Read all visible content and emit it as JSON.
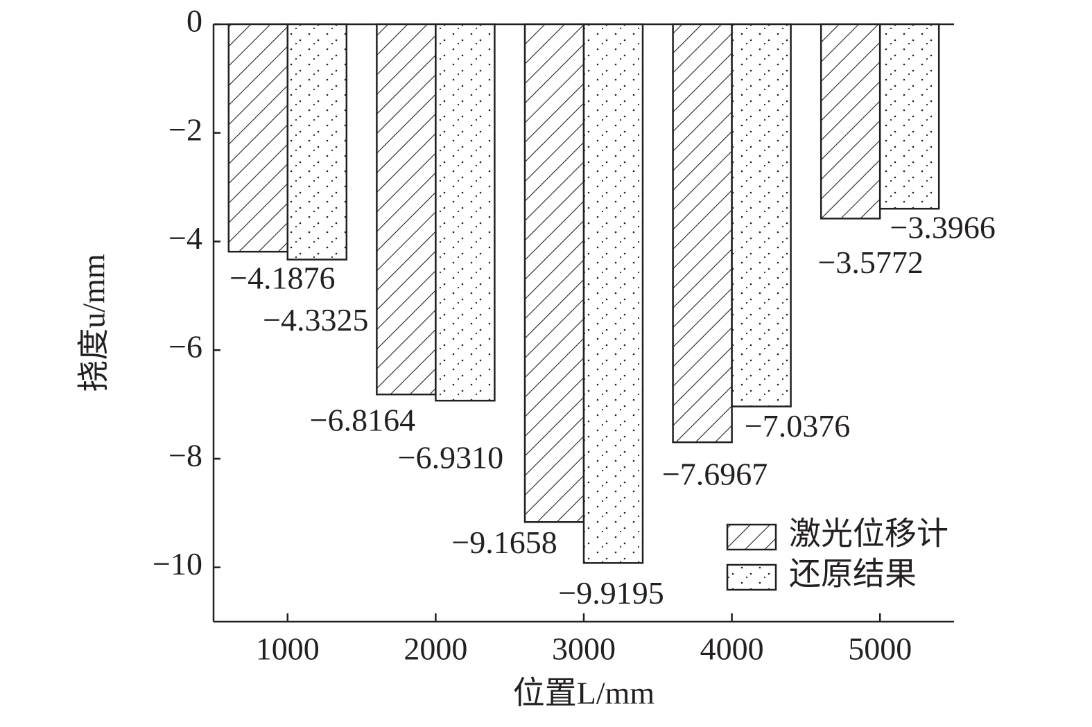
{
  "chart_data": {
    "type": "bar",
    "x_label": "位置L/mm",
    "y_label": "挠度u/mm",
    "categories": [
      "1000",
      "2000",
      "3000",
      "4000",
      "5000"
    ],
    "series": [
      {
        "name": "激光位移计",
        "color": "#231f20",
        "pattern": "hatch",
        "values": [
          -4.1876,
          -6.8164,
          -9.1658,
          -7.6967,
          -3.5772
        ],
        "value_labels": [
          "−4.1876",
          "−6.8164",
          "−9.1658",
          "−7.6967",
          "−3.5772"
        ]
      },
      {
        "name": "还原结果",
        "color": "#231f20",
        "pattern": "dots",
        "values": [
          -4.3325,
          -6.931,
          -9.9195,
          -7.0376,
          -3.3966
        ],
        "value_labels": [
          "−4.3325",
          "−6.9310",
          "−9.9195",
          "−7.0376",
          "−3.3966"
        ]
      }
    ],
    "ylim": [
      -11,
      0
    ],
    "yticks": [
      0,
      {
        "value": -2,
        "label": "−2"
      },
      {
        "value": -4,
        "label": "−4"
      },
      {
        "value": -6,
        "label": "−6"
      },
      {
        "value": -8,
        "label": "−8"
      },
      {
        "value": -10,
        "label": "−10"
      }
    ],
    "legend": "lower right"
  }
}
